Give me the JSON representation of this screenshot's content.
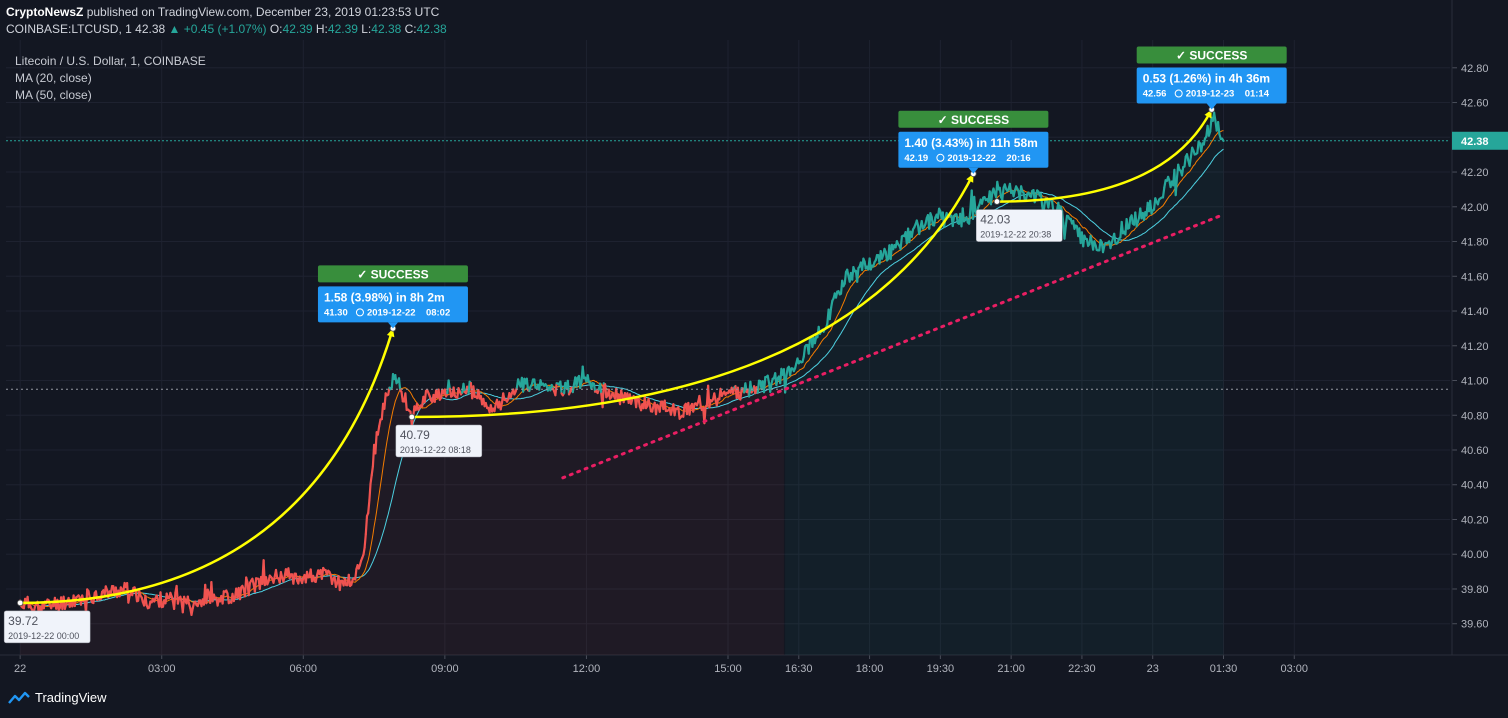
{
  "header": {
    "author": "CryptoNewsZ",
    "published": "published on TradingView.com, December 23, 2019 01:23:53 UTC",
    "symbol": "COINBASE:LTCUSD, 1",
    "last": "42.38",
    "change": "+0.45 (+1.07%)",
    "ohlc": {
      "o": "42.39",
      "h": "42.39",
      "l": "42.38",
      "c": "42.38"
    }
  },
  "legend": {
    "title": "Litecoin / U.S. Dollar, 1, COINBASE",
    "ma20": "MA (20, close)",
    "ma50": "MA (50, close)"
  },
  "footer": {
    "brand": "TradingView"
  },
  "colors": {
    "background": "#131722",
    "up": "#26a69a",
    "down": "#ef5350",
    "ma20": "#f57c00",
    "ma50": "#4dd0e1",
    "arrow": "#ffff00",
    "trendline": "#e91e63",
    "success": "#388e3c",
    "callout": "#2196f3"
  },
  "chart_data": {
    "type": "line",
    "xlabel": "",
    "ylabel": "",
    "x_ticks": [
      "22",
      "03:00",
      "06:00",
      "09:00",
      "12:00",
      "15:00",
      "16:30",
      "18:00",
      "19:30",
      "21:00",
      "22:30",
      "23",
      "01:30",
      "03:00"
    ],
    "x_tick_hours": [
      0,
      3,
      6,
      9,
      12,
      15,
      16.5,
      18,
      19.5,
      21,
      22.5,
      24,
      25.5,
      27
    ],
    "x_range_hours": [
      -0.3,
      30.3
    ],
    "y_ticks": [
      "42.80",
      "42.60",
      "42.40",
      "42.20",
      "42.00",
      "41.80",
      "41.60",
      "41.40",
      "41.20",
      "41.00",
      "40.80",
      "40.60",
      "40.40",
      "40.20",
      "40.00",
      "39.80",
      "39.60"
    ],
    "ylim": [
      39.42,
      42.96
    ],
    "last_price": {
      "label": "42.38",
      "value": 42.38
    },
    "reference_level": 40.95,
    "series": [
      {
        "name": "LTCUSD",
        "points": [
          [
            0,
            39.72
          ],
          [
            0.5,
            39.7
          ],
          [
            1,
            39.73
          ],
          [
            1.5,
            39.76
          ],
          [
            2,
            39.79
          ],
          [
            2.4,
            39.8
          ],
          [
            2.6,
            39.72
          ],
          [
            3,
            39.74
          ],
          [
            3.5,
            39.73
          ],
          [
            4,
            39.74
          ],
          [
            4.5,
            39.76
          ],
          [
            5,
            39.83
          ],
          [
            5.5,
            39.88
          ],
          [
            6,
            39.87
          ],
          [
            6.5,
            39.88
          ],
          [
            6.8,
            39.83
          ],
          [
            7.1,
            39.86
          ],
          [
            7.3,
            40.05
          ],
          [
            7.5,
            40.6
          ],
          [
            7.8,
            40.95
          ],
          [
            8.0,
            41.0
          ],
          [
            8.3,
            40.79
          ],
          [
            8.6,
            40.92
          ],
          [
            9,
            40.9
          ],
          [
            9.5,
            40.96
          ],
          [
            10,
            40.82
          ],
          [
            10.5,
            40.97
          ],
          [
            11,
            40.98
          ],
          [
            11.5,
            40.95
          ],
          [
            12,
            41.0
          ],
          [
            12.5,
            40.92
          ],
          [
            13,
            40.88
          ],
          [
            13.5,
            40.85
          ],
          [
            14,
            40.82
          ],
          [
            14.5,
            40.88
          ],
          [
            15,
            40.92
          ],
          [
            15.5,
            40.95
          ],
          [
            16,
            41.0
          ],
          [
            16.5,
            41.12
          ],
          [
            17,
            41.3
          ],
          [
            17.5,
            41.6
          ],
          [
            18,
            41.68
          ],
          [
            18.5,
            41.75
          ],
          [
            19,
            41.88
          ],
          [
            19.5,
            41.95
          ],
          [
            20,
            41.92
          ],
          [
            20.3,
            42.0
          ],
          [
            20.6,
            42.06
          ],
          [
            21,
            42.1
          ],
          [
            21.5,
            42.06
          ],
          [
            22,
            41.98
          ],
          [
            22.5,
            41.82
          ],
          [
            23,
            41.75
          ],
          [
            23.5,
            41.9
          ],
          [
            24,
            42.0
          ],
          [
            24.3,
            42.12
          ],
          [
            24.7,
            42.25
          ],
          [
            25.0,
            42.35
          ],
          [
            25.3,
            42.5
          ],
          [
            25.5,
            42.38
          ]
        ]
      }
    ],
    "annotations": [
      {
        "label": "SUCCESS",
        "text": "1.58 (3.98%) in 8h 2m",
        "target": "41.30",
        "date": "2019-12-22",
        "time": "08:02"
      },
      {
        "label": "SUCCESS",
        "text": "1.40 (3.43%) in 11h 58m",
        "target": "42.19",
        "date": "2019-12-22",
        "time": "20:16"
      },
      {
        "label": "SUCCESS",
        "text": "0.53 (1.26%) in 4h 36m",
        "target": "42.56",
        "date": "2019-12-23",
        "time": "01:14"
      }
    ],
    "arrows": [
      {
        "from": [
          0,
          39.72
        ],
        "to": [
          7.9,
          41.3
        ]
      },
      {
        "from": [
          8.3,
          40.79
        ],
        "to": [
          20.2,
          42.19
        ]
      },
      {
        "from": [
          20.7,
          42.03
        ],
        "to": [
          25.25,
          42.56
        ]
      }
    ],
    "price_labels": [
      {
        "value": "39.72",
        "datetime": "2019-12-22 00:00",
        "at": [
          0.0,
          39.72
        ]
      },
      {
        "value": "40.79",
        "datetime": "2019-12-22 08:18",
        "at": [
          8.3,
          40.79
        ]
      },
      {
        "value": "42.03",
        "datetime": "2019-12-22 20:38",
        "at": [
          20.6,
          42.03
        ]
      }
    ],
    "trendline": {
      "from": [
        11.5,
        40.44
      ],
      "to": [
        25.45,
        41.95
      ]
    }
  }
}
